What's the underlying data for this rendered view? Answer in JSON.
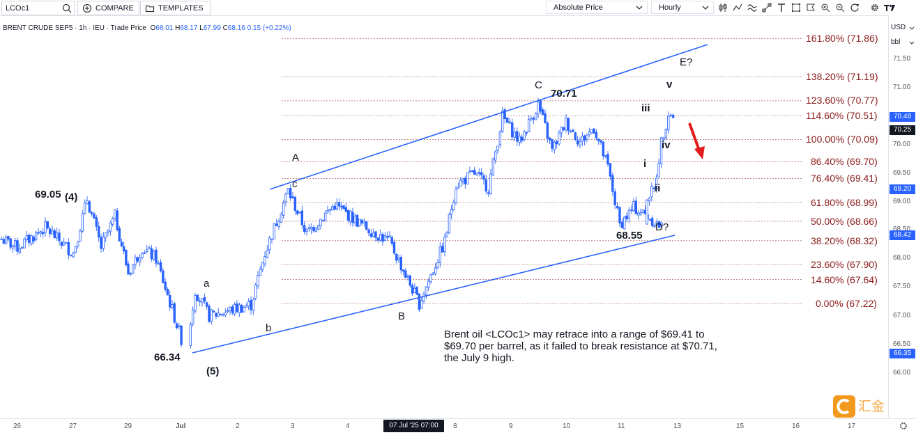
{
  "toolbar": {
    "symbol": "LCOc1",
    "compare_label": "COMPARE",
    "templates_label": "TEMPLATES",
    "price_type": "Absolute Price",
    "interval": "Hourly",
    "icons": [
      "candles-icon",
      "indicators-icon",
      "draw-icon",
      "fib-icon",
      "text-icon",
      "screenshot-icon",
      "alert-icon",
      "zoom-in-icon",
      "zoom-out-icon",
      "refresh-icon",
      "settings-icon",
      "brand-logo"
    ]
  },
  "legend": {
    "title": "BRENT CRUDE SEP5 · 1h · IEU · Trade Price",
    "o_label": "O",
    "o": "68.01",
    "h_label": "H",
    "h": "68.17",
    "l_label": "L",
    "l": "67.99",
    "c_label": "C",
    "c": "68.16",
    "change": "0.15 (+0.22%)"
  },
  "price_axis": {
    "currency": "USD",
    "unit": "bbl",
    "ticks": [
      "71.50",
      "71.00",
      "70.00",
      "69.50",
      "69.00",
      "68.50",
      "68.00",
      "67.50",
      "67.00",
      "66.50",
      "66.00"
    ],
    "tags": [
      {
        "value": "70.48",
        "color": "#2962ff"
      },
      {
        "value": "70.25",
        "color": "#131722"
      },
      {
        "value": "69.20",
        "color": "#2962ff"
      },
      {
        "value": "68.42",
        "color": "#2962ff"
      },
      {
        "value": "66.35",
        "color": "#2962ff"
      }
    ]
  },
  "time_axis": {
    "ticks": [
      "26",
      "27",
      "29",
      "Jul",
      "2",
      "3",
      "4",
      "8",
      "9",
      "10",
      "11",
      "13",
      "15",
      "16",
      "17"
    ],
    "cursor_label": "07 Jul '25   07:00"
  },
  "fib_levels": [
    {
      "label": "161.80% (71.86)",
      "price": 71.86
    },
    {
      "label": "138.20% (71.19)",
      "price": 71.19
    },
    {
      "label": "123.60% (70.77)",
      "price": 70.77
    },
    {
      "label": "114.60% (70.51)",
      "price": 70.51
    },
    {
      "label": "100.00% (70.09)",
      "price": 70.09
    },
    {
      "label": "86.40% (69.70)",
      "price": 69.7
    },
    {
      "label": "76.40% (69.41)",
      "price": 69.41
    },
    {
      "label": "61.80% (68.99)",
      "price": 68.99
    },
    {
      "label": "50.00% (68.66)",
      "price": 68.66
    },
    {
      "label": "38.20% (68.32)",
      "price": 68.32
    },
    {
      "label": "23.60% (67.90)",
      "price": 67.9
    },
    {
      "label": "14.60% (67.64)",
      "price": 67.64
    },
    {
      "label": "0.00% (67.22)",
      "price": 67.22
    }
  ],
  "wave_labels": {
    "w4_price": "69.05",
    "w4": "(4)",
    "w5_price": "66.34",
    "w5": "(5)",
    "a_small": "a",
    "b_small": "b",
    "c_small": "c",
    "A": "A",
    "B": "B",
    "C": "C",
    "C_price": "70.71",
    "D": "D?",
    "D_price": "68.55",
    "E": "E?",
    "i": "i",
    "ii": "ii",
    "iii": "iii",
    "iv": "iv",
    "v": "v"
  },
  "note": "Brent oil <LCOc1> may retrace into a range of $69.41 to $69.70 per barrel, as it failed to break resistance at $70.71, the July 9 high.",
  "watermark": "汇金网",
  "colors": {
    "candle": "#2962ff",
    "fib": "#8b1a1a",
    "trend": "#2962ff",
    "arrow": "#e21b1b"
  },
  "chart_data": {
    "type": "candlestick",
    "title": "BRENT CRUDE SEP5 · 1h · IEU · Trade Price",
    "ylim": [
      65.9,
      71.95
    ],
    "path_points": [
      {
        "x": "2025-06-25 00:00",
        "y": 68.75
      },
      {
        "x": "2025-06-26 00:00",
        "y": 68.2
      },
      {
        "x": "2025-06-26 12:00",
        "y": 68.55
      },
      {
        "x": "2025-06-27 00:00",
        "y": 68.1
      },
      {
        "x": "2025-06-27 06:00",
        "y": 69.05
      },
      {
        "x": "2025-06-27 12:00",
        "y": 68.2
      },
      {
        "x": "2025-06-27 18:00",
        "y": 68.75
      },
      {
        "x": "2025-06-30 00:00",
        "y": 67.75
      },
      {
        "x": "2025-06-30 06:00",
        "y": 68.2
      },
      {
        "x": "2025-06-30 12:00",
        "y": 68.0
      },
      {
        "x": "2025-07-01 02:00",
        "y": 66.34
      },
      {
        "x": "2025-07-01 06:00",
        "y": 67.45
      },
      {
        "x": "2025-07-01 12:00",
        "y": 67.0
      },
      {
        "x": "2025-07-02 06:00",
        "y": 67.2
      },
      {
        "x": "2025-07-02 12:00",
        "y": 68.1
      },
      {
        "x": "2025-07-02 22:00",
        "y": 69.2
      },
      {
        "x": "2025-07-03 06:00",
        "y": 68.45
      },
      {
        "x": "2025-07-03 18:00",
        "y": 68.95
      },
      {
        "x": "2025-07-04 06:00",
        "y": 68.6
      },
      {
        "x": "2025-07-04 18:00",
        "y": 68.3
      },
      {
        "x": "2025-07-07 07:00",
        "y": 67.22
      },
      {
        "x": "2025-07-07 18:00",
        "y": 68.3
      },
      {
        "x": "2025-07-08 00:00",
        "y": 69.3
      },
      {
        "x": "2025-07-08 08:00",
        "y": 69.5
      },
      {
        "x": "2025-07-08 14:00",
        "y": 69.25
      },
      {
        "x": "2025-07-08 20:00",
        "y": 70.5
      },
      {
        "x": "2025-07-09 04:00",
        "y": 70.05
      },
      {
        "x": "2025-07-09 12:00",
        "y": 70.71
      },
      {
        "x": "2025-07-09 18:00",
        "y": 69.9
      },
      {
        "x": "2025-07-10 00:00",
        "y": 70.4
      },
      {
        "x": "2025-07-10 06:00",
        "y": 70.05
      },
      {
        "x": "2025-07-10 12:00",
        "y": 70.3
      },
      {
        "x": "2025-07-10 18:00",
        "y": 69.6
      },
      {
        "x": "2025-07-11 00:00",
        "y": 68.6
      },
      {
        "x": "2025-07-11 06:00",
        "y": 68.9
      },
      {
        "x": "2025-07-11 12:00",
        "y": 68.75
      },
      {
        "x": "2025-07-11 18:00",
        "y": 68.55
      },
      {
        "x": "2025-07-12 00:00",
        "y": 69.1
      },
      {
        "x": "2025-07-12 06:00",
        "y": 69.2
      },
      {
        "x": "2025-07-12 12:00",
        "y": 70.05
      },
      {
        "x": "2025-07-12 18:00",
        "y": 70.55
      },
      {
        "x": "2025-07-13 00:00",
        "y": 70.5
      }
    ]
  }
}
